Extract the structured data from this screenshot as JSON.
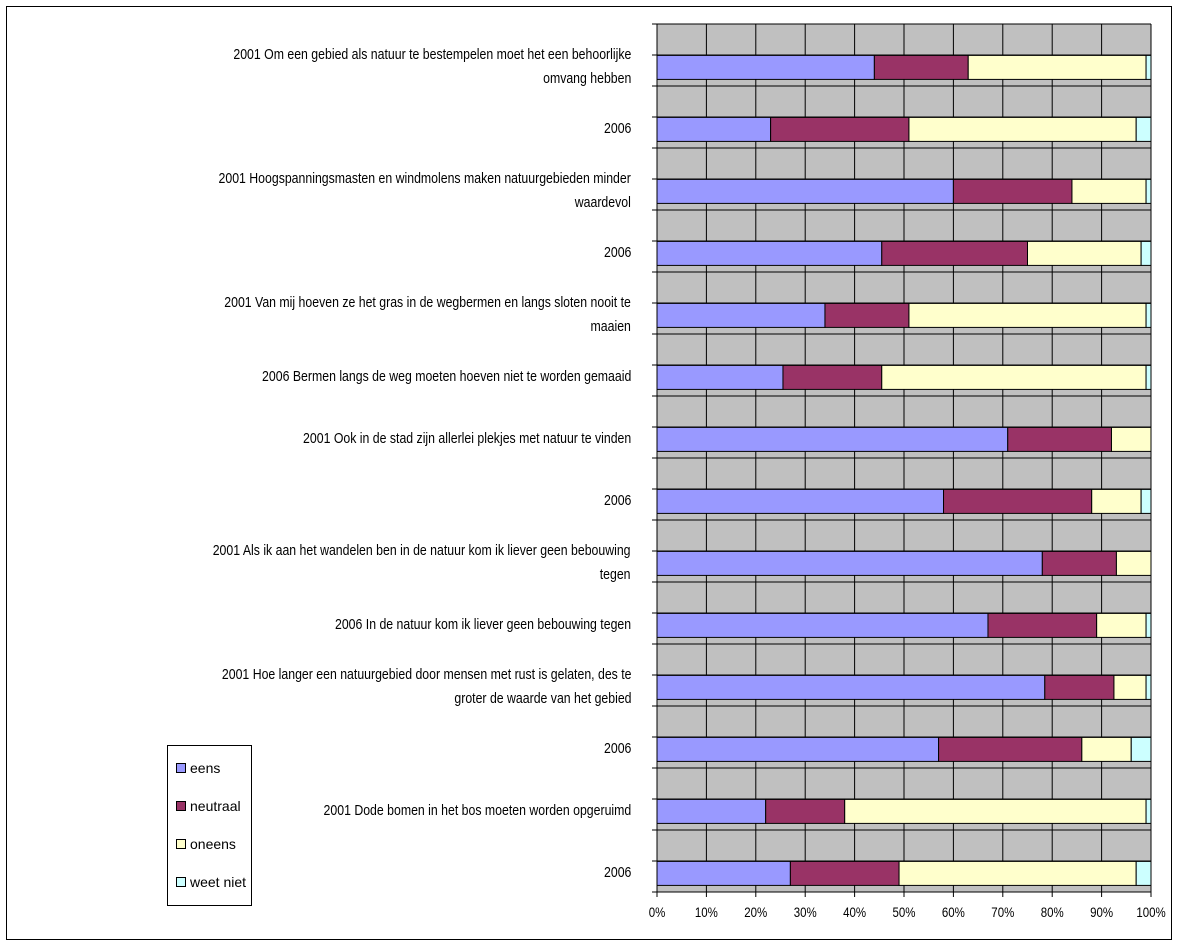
{
  "chart_data": {
    "type": "bar",
    "orientation": "horizontal",
    "stacked": "percent",
    "categories": [
      "2001 Om een gebied als natuur te bestempelen moet het een behoorlijke omvang hebben",
      "2006",
      "2001 Hoogspanningsmasten en windmolens maken natuurgebieden minder waardevol",
      "2006",
      "2001 Van mij hoeven ze het gras in de wegbermen en langs sloten nooit te maaien",
      "2006 Bermen langs de weg moeten hoeven niet te worden gemaaid",
      "2001 Ook in de stad zijn allerlei plekjes met natuur te vinden",
      "2006",
      "2001 Als ik aan het wandelen ben in de natuur kom ik liever geen bebouwing tegen",
      "2006 In de natuur kom ik liever geen bebouwing tegen",
      "2001 Hoe langer een natuurgebied door mensen met rust is gelaten, des te groter de waarde van het gebied",
      "2006",
      "2001 Dode bomen in het bos moeten worden opgeruimd",
      "2006"
    ],
    "category_lines": [
      [
        "2001 Om een gebied als natuur te bestempelen moet het een behoorlijke",
        "omvang hebben"
      ],
      [
        "2006"
      ],
      [
        "2001 Hoogspanningsmasten en windmolens maken natuurgebieden minder",
        "waardevol"
      ],
      [
        "2006"
      ],
      [
        "2001 Van mij hoeven ze het gras in de wegbermen en langs sloten nooit te",
        "maaien"
      ],
      [
        "2006 Bermen langs de weg moeten hoeven niet te worden gemaaid"
      ],
      [
        "2001 Ook in de stad zijn allerlei plekjes met natuur te vinden"
      ],
      [
        "2006"
      ],
      [
        "2001 Als ik aan het wandelen ben in de natuur kom ik liever geen bebouwing",
        "tegen"
      ],
      [
        "2006 In de natuur kom ik liever geen bebouwing tegen"
      ],
      [
        "2001 Hoe langer een natuurgebied door mensen met rust is gelaten, des te",
        "groter de waarde van het gebied"
      ],
      [
        "2006"
      ],
      [
        "2001 Dode bomen in het bos moeten worden opgeruimd"
      ],
      [
        "2006"
      ]
    ],
    "series": [
      {
        "name": "eens",
        "color": "#9999ff",
        "values": [
          44,
          23,
          60,
          45.5,
          34,
          25.5,
          71,
          58,
          78,
          67,
          78.5,
          57,
          22,
          27
        ]
      },
      {
        "name": "neutraal",
        "color": "#993366",
        "values": [
          19,
          28,
          24,
          29.5,
          17,
          20,
          21,
          30,
          15,
          22,
          14,
          29,
          16,
          22
        ]
      },
      {
        "name": "oneens",
        "color": "#ffffcc",
        "values": [
          36,
          46,
          15,
          23,
          48,
          53.5,
          8,
          10,
          7,
          10,
          6.5,
          10,
          61,
          48
        ]
      },
      {
        "name": "weet niet",
        "color": "#ccffff",
        "values": [
          1,
          3,
          1,
          2,
          1,
          1,
          0,
          2,
          0,
          1,
          1,
          4,
          1,
          3
        ]
      }
    ],
    "xlim": [
      0,
      100
    ],
    "x_ticks": [
      "0%",
      "10%",
      "20%",
      "30%",
      "40%",
      "50%",
      "60%",
      "70%",
      "80%",
      "90%",
      "100%"
    ],
    "grid": true,
    "plot_background": "#c0c0c0",
    "legend": "bottom-left"
  }
}
